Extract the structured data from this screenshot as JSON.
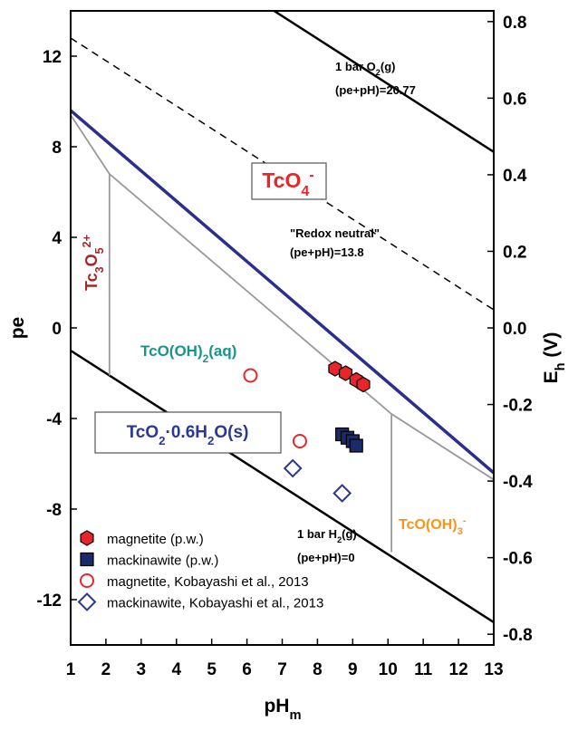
{
  "chart_data": {
    "type": "line",
    "xlabel": [
      [
        "pH",
        ""
      ],
      [
        "m",
        "sub"
      ]
    ],
    "ylabel": [
      [
        "pe",
        ""
      ]
    ],
    "y2label": [
      [
        "E",
        ""
      ],
      [
        "h",
        "sub"
      ],
      [
        " (V)",
        ""
      ]
    ],
    "xlim": [
      1,
      13
    ],
    "ylim": [
      -14,
      14
    ],
    "y2lim": [
      -0.828,
      0.828
    ],
    "xticks": [
      1,
      2,
      3,
      4,
      5,
      6,
      7,
      8,
      9,
      10,
      11,
      12,
      13
    ],
    "yticks": [
      -12,
      -8,
      -4,
      0,
      4,
      8,
      12
    ],
    "y2ticks": [
      -0.8,
      -0.6,
      -0.4,
      -0.2,
      {
        "value": 0,
        "label": "0.0"
      },
      0.2,
      0.4,
      0.6,
      0.8
    ],
    "lines": [
      {
        "x": [
          6.77,
          13
        ],
        "y": [
          14,
          7.77
        ],
        "color": "#000000",
        "style": "solid",
        "width": 2.5
      },
      {
        "x": [
          1,
          13
        ],
        "y": [
          12.8,
          0.8
        ],
        "color": "#000000",
        "style": "dashed",
        "width": 1.5
      },
      {
        "x": [
          1,
          13
        ],
        "y": [
          -1,
          -13
        ],
        "color": "#000000",
        "style": "solid",
        "width": 2.5
      },
      {
        "x": [
          1,
          13
        ],
        "y": [
          9.6,
          -6.4
        ],
        "color": "#2b2f8c",
        "style": "solid",
        "width": 3.5
      },
      {
        "x": [
          1,
          2.1,
          10.1,
          13
        ],
        "y": [
          9.4,
          6.8,
          -3.8,
          -6.7
        ],
        "color": "#999999",
        "style": "solid",
        "width": 1.8
      },
      {
        "x": [
          2.1,
          2.1
        ],
        "y": [
          6.8,
          -2.1
        ],
        "color": "#999999",
        "style": "solid",
        "width": 1.8
      },
      {
        "x": [
          10.1,
          10.1
        ],
        "y": [
          -3.8,
          -9.9
        ],
        "color": "#999999",
        "style": "solid",
        "width": 1.8
      }
    ],
    "series": [
      {
        "name": "magnetite (p.w.)",
        "marker": "hexagon",
        "color": "#e8262a",
        "filled": true,
        "x": [
          8.5,
          8.8,
          9.1,
          9.3
        ],
        "y": [
          -1.8,
          -2.0,
          -2.3,
          -2.5
        ]
      },
      {
        "name": "mackinawite (p.w.)",
        "marker": "square",
        "color": "#1b2a6b",
        "filled": true,
        "x": [
          8.7,
          8.85,
          9.0,
          9.1
        ],
        "y": [
          -4.7,
          -4.85,
          -5.0,
          -5.2
        ]
      },
      {
        "name": "magnetite, Kobayashi et al., 2013",
        "marker": "circle",
        "color": "#e8262a",
        "filled": false,
        "x": [
          6.1,
          7.5
        ],
        "y": [
          -2.1,
          -5.0
        ]
      },
      {
        "name": "mackinawite, Kobayashi et al., 2013",
        "marker": "diamond",
        "color": "#2b3990",
        "filled": false,
        "x": [
          7.3,
          8.7
        ],
        "y": [
          -6.2,
          -7.3
        ]
      }
    ],
    "annotations": [
      {
        "text": [
          [
            "TcO",
            ""
          ],
          [
            "4",
            "sub"
          ],
          [
            "-",
            "sup"
          ]
        ],
        "color": "#e8262a",
        "boxed": true
      },
      {
        "text": [
          [
            "Tc",
            ""
          ],
          [
            "3",
            "sub"
          ],
          [
            "O",
            ""
          ],
          [
            "5",
            "sub"
          ],
          [
            "2+",
            "sup"
          ]
        ],
        "color": "#a8262a",
        "boxed": false
      },
      {
        "text": [
          [
            "TcO(OH)",
            ""
          ],
          [
            "2",
            "sub"
          ],
          [
            "(aq)",
            ""
          ]
        ],
        "color": "#1a948a",
        "boxed": false
      },
      {
        "text": [
          [
            "TcO",
            ""
          ],
          [
            "2",
            "sub"
          ],
          [
            "·0.6H",
            ""
          ],
          [
            "2",
            "sub"
          ],
          [
            "O(s)",
            ""
          ]
        ],
        "color": "#2b3990",
        "boxed": true
      },
      {
        "text": [
          [
            "TcO(OH)",
            ""
          ],
          [
            "3",
            "sub"
          ],
          [
            "-",
            "sup"
          ]
        ],
        "color": "#f7941d",
        "boxed": false
      },
      {
        "text": [
          [
            "1 bar O",
            ""
          ],
          [
            "2",
            "sub"
          ],
          [
            "(g)",
            ""
          ]
        ],
        "color": "#000000",
        "boxed": false
      },
      {
        "text": [
          [
            "(pe+pH)=20.77",
            ""
          ]
        ],
        "color": "#000000",
        "boxed": false
      },
      {
        "text": [
          [
            "\"Redox neutral\"",
            ""
          ]
        ],
        "color": "#000000",
        "boxed": false
      },
      {
        "text": [
          [
            "(pe+pH)=13.8",
            ""
          ]
        ],
        "color": "#000000",
        "boxed": false
      },
      {
        "text": [
          [
            "1 bar H",
            ""
          ],
          [
            "2",
            "sub"
          ],
          [
            "(g)",
            ""
          ]
        ],
        "color": "#000000",
        "boxed": false
      },
      {
        "text": [
          [
            "(pe+pH)=0",
            ""
          ]
        ],
        "color": "#000000",
        "boxed": false
      }
    ]
  }
}
